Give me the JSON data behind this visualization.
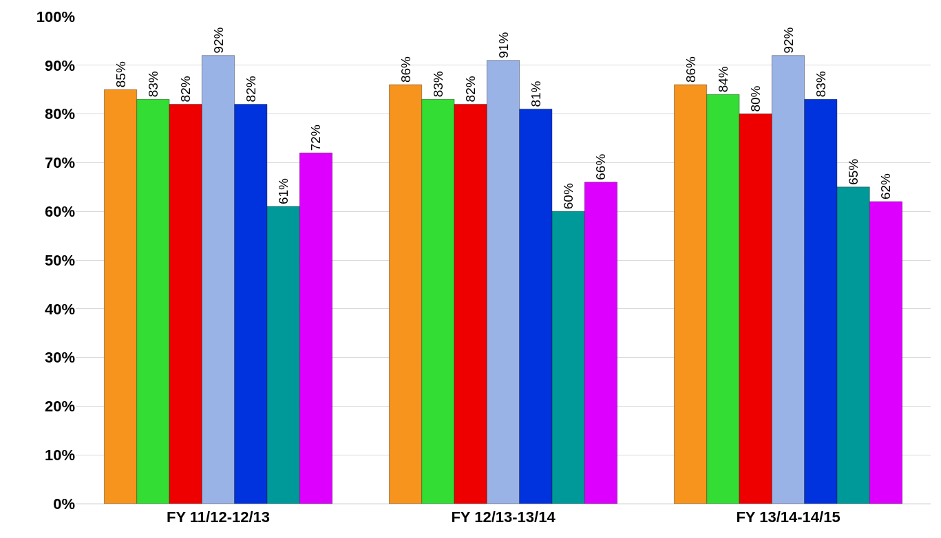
{
  "chart_data": {
    "type": "bar",
    "categories": [
      "FY 11/12-12/13",
      "FY 12/13-13/14",
      "FY 13/14-14/15"
    ],
    "series": [
      {
        "color": "#f7941d",
        "values": [
          85,
          86,
          86
        ],
        "value_labels": [
          "85%",
          "86%",
          "86%"
        ]
      },
      {
        "color": "#33dd33",
        "values": [
          83,
          83,
          84
        ],
        "value_labels": [
          "83%",
          "83%",
          "84%"
        ]
      },
      {
        "color": "#ee0000",
        "values": [
          82,
          82,
          80
        ],
        "value_labels": [
          "82%",
          "82%",
          "80%"
        ]
      },
      {
        "color": "#99b3e6",
        "values": [
          92,
          91,
          92
        ],
        "value_labels": [
          "92%",
          "91%",
          "92%"
        ]
      },
      {
        "color": "#0033dd",
        "values": [
          82,
          81,
          83
        ],
        "value_labels": [
          "82%",
          "81%",
          "83%"
        ]
      },
      {
        "color": "#009999",
        "values": [
          61,
          60,
          65
        ],
        "value_labels": [
          "61%",
          "60%",
          "65%"
        ]
      },
      {
        "color": "#dd00ff",
        "values": [
          72,
          66,
          62
        ],
        "value_labels": [
          "72%",
          "66%",
          "62%"
        ]
      }
    ],
    "ylim": [
      0,
      100
    ],
    "yticks": [
      {
        "value": 0,
        "label": "0%"
      },
      {
        "value": 10,
        "label": "10%"
      },
      {
        "value": 20,
        "label": "20%"
      },
      {
        "value": 30,
        "label": "30%"
      },
      {
        "value": 40,
        "label": "40%"
      },
      {
        "value": 50,
        "label": "50%"
      },
      {
        "value": 60,
        "label": "60%"
      },
      {
        "value": 70,
        "label": "70%"
      },
      {
        "value": 80,
        "label": "80%"
      },
      {
        "value": 90,
        "label": "90%"
      },
      {
        "value": 100,
        "label": "100%"
      }
    ],
    "grid": "y"
  }
}
